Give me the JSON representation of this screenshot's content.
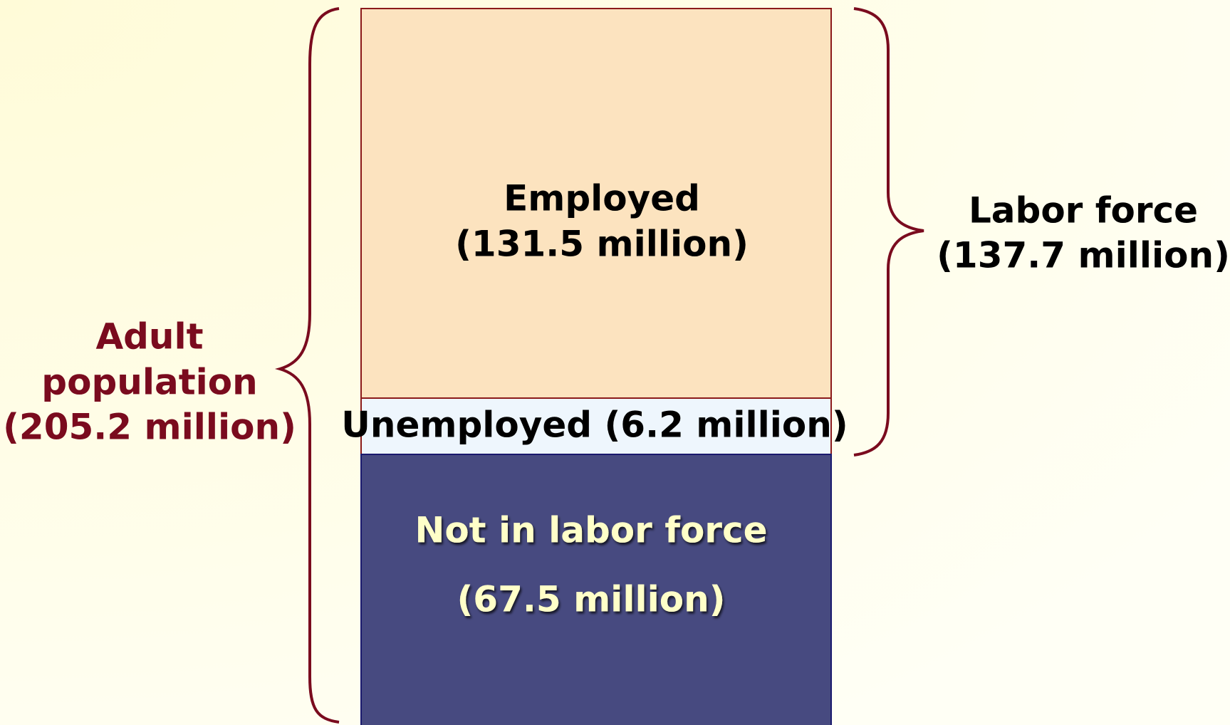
{
  "boxes": [
    {
      "label": "Employed",
      "amount": "(131.5 million)"
    },
    {
      "label": "Unemployed (6.2 million)"
    },
    {
      "label": "Not in labor force",
      "amount": "(67.5 million)"
    }
  ],
  "brackets": [
    {
      "label": "Labor force",
      "amount": "(137.7 million)"
    },
    {
      "label": "Adult",
      "label2": "population",
      "amount": "(205.2 million)"
    }
  ]
}
